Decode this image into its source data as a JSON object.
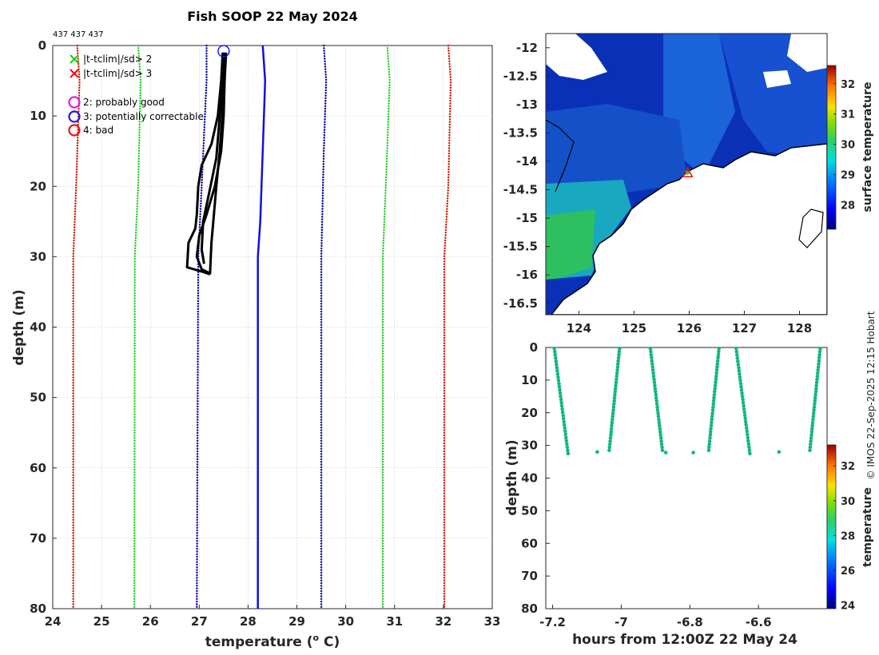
{
  "title": "Fish SOOP 22 May 2024",
  "ids_label": "437 437 437",
  "credit": "© IMOS 22-Sep-2025 12:15 Hobart",
  "colors": {
    "clim_mean": "#1010e0",
    "clim_2sd": "#0000a0",
    "clim_3sd": "#22cc22",
    "clim_4sd": "#cc1a00",
    "profile": "#000000",
    "scatter": "#14b87a",
    "land": "#ffffff"
  },
  "chart_data": [
    {
      "type": "line",
      "name": "profile",
      "xlabel": "temperature (o C)",
      "xlabel_main": "temperature (",
      "xlabel_sup": "o",
      "xlabel_end": " C)",
      "ylabel": "depth (m)",
      "xlim": [
        24,
        33
      ],
      "ylim": [
        80,
        0
      ],
      "xticks": [
        "24",
        "25",
        "26",
        "27",
        "28",
        "29",
        "30",
        "31",
        "32",
        "33"
      ],
      "yticks": [
        "0",
        "10",
        "20",
        "30",
        "40",
        "50",
        "60",
        "70",
        "80"
      ],
      "legend": [
        {
          "marker": "x",
          "color": "#22cc22",
          "label": "|t-tclim|/sd> 2"
        },
        {
          "marker": "x",
          "color": "#ee1111",
          "label": "|t-tclim|/sd> 3"
        },
        {
          "marker": "o",
          "color": "#dd22dd",
          "label": "2: probably good"
        },
        {
          "marker": "o",
          "color": "#1a1aee",
          "label": "3: potentially correctable"
        },
        {
          "marker": "o",
          "color": "#ee1111",
          "label": "4: bad"
        }
      ],
      "series": [
        {
          "name": "climatology mean",
          "style": "solid",
          "color": "#1010e0",
          "points": [
            [
              28.3,
              0
            ],
            [
              28.35,
              5
            ],
            [
              28.3,
              15
            ],
            [
              28.25,
              25
            ],
            [
              28.2,
              30
            ],
            [
              28.2,
              80
            ]
          ]
        },
        {
          "name": "clim -2sd",
          "style": "dotted",
          "color": "#0000a0",
          "points": [
            [
              27.15,
              0
            ],
            [
              27.15,
              5
            ],
            [
              27.05,
              20
            ],
            [
              26.98,
              30
            ],
            [
              26.95,
              80
            ]
          ]
        },
        {
          "name": "clim +2sd",
          "style": "dotted",
          "color": "#0000a0",
          "points": [
            [
              29.55,
              0
            ],
            [
              29.6,
              5
            ],
            [
              29.55,
              15
            ],
            [
              29.5,
              30
            ],
            [
              29.5,
              80
            ]
          ]
        },
        {
          "name": "clim -3sd",
          "style": "dotted",
          "color": "#22cc22",
          "points": [
            [
              25.75,
              0
            ],
            [
              25.8,
              5
            ],
            [
              25.75,
              20
            ],
            [
              25.68,
              30
            ],
            [
              25.67,
              80
            ]
          ]
        },
        {
          "name": "clim +3sd",
          "style": "dotted",
          "color": "#22cc22",
          "points": [
            [
              30.85,
              0
            ],
            [
              30.9,
              5
            ],
            [
              30.82,
              20
            ],
            [
              30.76,
              30
            ],
            [
              30.76,
              80
            ]
          ]
        },
        {
          "name": "clim -4sd",
          "style": "dotted",
          "color": "#cc1a00",
          "points": [
            [
              24.5,
              0
            ],
            [
              24.55,
              5
            ],
            [
              24.48,
              20
            ],
            [
              24.42,
              30
            ],
            [
              24.42,
              80
            ]
          ]
        },
        {
          "name": "clim +4sd",
          "style": "dotted",
          "color": "#cc1a00",
          "points": [
            [
              32.1,
              0
            ],
            [
              32.15,
              5
            ],
            [
              32.1,
              20
            ],
            [
              32.02,
              30
            ],
            [
              32.02,
              80
            ]
          ]
        },
        {
          "name": "cast 1",
          "style": "solid",
          "color": "#000000",
          "points": [
            [
              27.52,
              1
            ],
            [
              27.5,
              5
            ],
            [
              27.47,
              10
            ],
            [
              27.42,
              15
            ],
            [
              27.35,
              20
            ],
            [
              27.3,
              24
            ],
            [
              27.25,
              28
            ],
            [
              27.22,
              32.5
            ]
          ]
        },
        {
          "name": "cast 2",
          "style": "solid",
          "color": "#000000",
          "points": [
            [
              27.48,
              1
            ],
            [
              27.45,
              5
            ],
            [
              27.38,
              10
            ],
            [
              27.25,
              14
            ],
            [
              27.05,
              17
            ],
            [
              26.98,
              20
            ],
            [
              26.95,
              24
            ],
            [
              26.92,
              26
            ],
            [
              26.78,
              28
            ],
            [
              26.75,
              31.5
            ],
            [
              27.1,
              32.2
            ],
            [
              27.22,
              32.5
            ]
          ]
        },
        {
          "name": "cast 3",
          "style": "solid",
          "color": "#000000",
          "points": [
            [
              27.55,
              1
            ],
            [
              27.52,
              5
            ],
            [
              27.5,
              10
            ],
            [
              27.45,
              15
            ],
            [
              27.32,
              20
            ],
            [
              27.15,
              24
            ],
            [
              27.0,
              27
            ],
            [
              26.95,
              30
            ],
            [
              27.05,
              31.8
            ],
            [
              27.2,
              32.3
            ]
          ]
        },
        {
          "name": "cast 4",
          "style": "solid",
          "color": "#000000",
          "points": [
            [
              27.5,
              1
            ],
            [
              27.47,
              5
            ],
            [
              27.42,
              10
            ],
            [
              27.35,
              16
            ],
            [
              27.2,
              21
            ],
            [
              27.08,
              25
            ],
            [
              27.05,
              29
            ],
            [
              27.1,
              31
            ]
          ]
        }
      ],
      "flag_marker": {
        "x": 27.5,
        "y": 0.8,
        "color": "#1a1aee"
      }
    },
    {
      "type": "heatmap",
      "name": "sst_map",
      "xlim": [
        123.4,
        128.5
      ],
      "ylim": [
        -16.7,
        -11.75
      ],
      "xticks": [
        "124",
        "125",
        "126",
        "127",
        "128"
      ],
      "yticks": [
        "-12",
        "-12.5",
        "-13",
        "-13.5",
        "-14",
        "-14.5",
        "-15",
        "-15.5",
        "-16",
        "-16.5"
      ],
      "colorbar": {
        "label": "surface temperature",
        "min": 27.2,
        "max": 32.6,
        "ticks": [
          "28",
          "29",
          "30",
          "31",
          "32"
        ]
      },
      "location_marker": {
        "lon": 125.97,
        "lat": -14.2,
        "color": "#22cc22",
        "edge": "#ee1111"
      }
    },
    {
      "type": "scatter",
      "name": "time_depth",
      "xlabel": "hours from 12:00Z 22 May 24",
      "ylabel": "depth (m)",
      "xlim": [
        -7.22,
        -6.4
      ],
      "ylim": [
        80,
        0
      ],
      "xticks": [
        "-7.2",
        "-7",
        "-6.8",
        "-6.6"
      ],
      "yticks": [
        "0",
        "10",
        "20",
        "30",
        "40",
        "50",
        "60",
        "70",
        "80"
      ],
      "colorbar": {
        "label": "temperature",
        "min": 23.8,
        "max": 33.2,
        "ticks": [
          "24",
          "26",
          "28",
          "30",
          "32"
        ]
      },
      "casts": [
        {
          "t0": -7.195,
          "t1": -7.155,
          "z0": 0.3,
          "z1": 32.5
        },
        {
          "t0": -7.005,
          "t1": -7.035,
          "z0": 0.3,
          "z1": 31.5
        },
        {
          "t0": -6.915,
          "t1": -6.88,
          "z0": 0.3,
          "z1": 31.5
        },
        {
          "t0": -6.715,
          "t1": -6.745,
          "z0": 0.3,
          "z1": 31.5
        },
        {
          "t0": -6.665,
          "t1": -6.625,
          "z0": 0.3,
          "z1": 32.5
        },
        {
          "t0": -6.42,
          "t1": -6.45,
          "z0": 0.3,
          "z1": 31.5
        }
      ],
      "isolated_points": [
        {
          "t": -7.07,
          "z": 32
        },
        {
          "t": -6.87,
          "z": 32.2
        },
        {
          "t": -6.79,
          "z": 32.2
        },
        {
          "t": -6.54,
          "z": 32
        }
      ]
    }
  ]
}
